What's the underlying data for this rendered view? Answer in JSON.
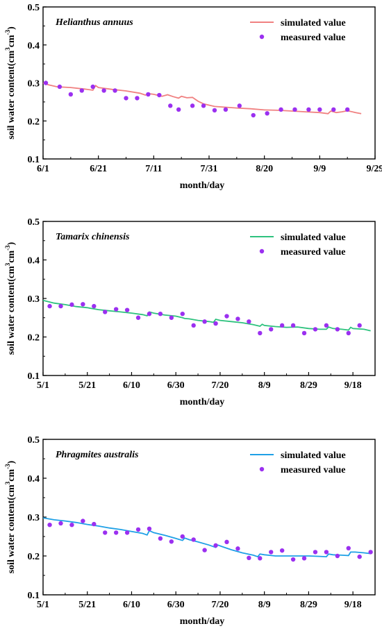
{
  "chart_data": [
    {
      "type": "line+scatter",
      "title": "Helianthus annuus",
      "xlabel": "month/day",
      "ylabel_main": "soil water content(cm",
      "ylabel_sup1": "3",
      "ylabel_mid": "cm",
      "ylabel_sup2": "-3",
      "ylabel_end": ")",
      "x_ticks": [
        "6/1",
        "6/21",
        "7/11",
        "7/31",
        "8/20",
        "9/9",
        "9/29"
      ],
      "x_ticks_day": [
        0,
        20,
        40,
        60,
        80,
        100,
        120
      ],
      "y_ticks": [
        "0.1",
        "0.2",
        "0.3",
        "0.4",
        "0.5"
      ],
      "ylim": [
        0.1,
        0.5
      ],
      "xlim_day": [
        0,
        120
      ],
      "legend": {
        "simulated": "simulated value",
        "measured": "measured value",
        "placement": "top-right"
      },
      "colors": {
        "line": "#f08080",
        "points": "#9b30f0"
      },
      "simulated": {
        "x": [
          0,
          2,
          5,
          10,
          15,
          18,
          19,
          20,
          25,
          30,
          35,
          37,
          38,
          40,
          43,
          45,
          47,
          49,
          50,
          52,
          54,
          56,
          58,
          62,
          66,
          70,
          75,
          80,
          85,
          90,
          95,
          100,
          103,
          104,
          106,
          108,
          110,
          113,
          115
        ],
        "y": [
          0.3,
          0.295,
          0.29,
          0.288,
          0.284,
          0.281,
          0.293,
          0.288,
          0.283,
          0.279,
          0.273,
          0.268,
          0.272,
          0.27,
          0.265,
          0.269,
          0.264,
          0.26,
          0.265,
          0.261,
          0.262,
          0.252,
          0.245,
          0.238,
          0.236,
          0.234,
          0.232,
          0.229,
          0.228,
          0.226,
          0.224,
          0.222,
          0.219,
          0.226,
          0.222,
          0.224,
          0.227,
          0.222,
          0.219
        ]
      },
      "measured": {
        "x": [
          1,
          6,
          10,
          14,
          18,
          22,
          26,
          30,
          34,
          38,
          42,
          46,
          49,
          54,
          58,
          62,
          66,
          71,
          76,
          81,
          86,
          91,
          96,
          100,
          105,
          110
        ],
        "y": [
          0.3,
          0.29,
          0.27,
          0.28,
          0.29,
          0.28,
          0.28,
          0.26,
          0.26,
          0.27,
          0.268,
          0.24,
          0.23,
          0.24,
          0.24,
          0.228,
          0.23,
          0.24,
          0.215,
          0.22,
          0.23,
          0.23,
          0.23,
          0.23,
          0.23,
          0.23
        ]
      }
    },
    {
      "type": "line+scatter",
      "title": "Tamarix chinensis",
      "xlabel": "month/day",
      "ylabel_main": "soil water content(cm",
      "ylabel_sup1": "3",
      "ylabel_mid": "cm",
      "ylabel_sup2": "-3",
      "ylabel_end": ")",
      "x_ticks": [
        "5/1",
        "5/21",
        "6/10",
        "6/30",
        "7/20",
        "8/9",
        "8/29",
        "9/18"
      ],
      "x_ticks_day": [
        0,
        20,
        40,
        60,
        80,
        100,
        120,
        140
      ],
      "y_ticks": [
        "0.1",
        "0.2",
        "0.3",
        "0.4",
        "0.5"
      ],
      "ylim": [
        0.1,
        0.5
      ],
      "xlim_day": [
        0,
        150
      ],
      "legend": {
        "simulated": "simulated value",
        "measured": "measured value",
        "placement": "top-right"
      },
      "colors": {
        "line": "#2ec27e",
        "points": "#9b30f0"
      },
      "simulated": {
        "x": [
          0,
          5,
          10,
          15,
          20,
          25,
          30,
          35,
          40,
          45,
          47,
          48,
          50,
          55,
          60,
          63,
          64,
          66,
          70,
          75,
          77,
          78,
          80,
          85,
          90,
          95,
          98,
          99,
          100,
          105,
          110,
          115,
          120,
          125,
          128,
          129,
          131,
          135,
          138,
          139,
          140,
          145,
          148
        ],
        "y": [
          0.295,
          0.288,
          0.284,
          0.279,
          0.276,
          0.271,
          0.268,
          0.265,
          0.262,
          0.258,
          0.255,
          0.265,
          0.262,
          0.257,
          0.254,
          0.25,
          0.248,
          0.247,
          0.243,
          0.24,
          0.238,
          0.246,
          0.243,
          0.24,
          0.237,
          0.232,
          0.228,
          0.233,
          0.23,
          0.227,
          0.225,
          0.226,
          0.222,
          0.22,
          0.22,
          0.226,
          0.222,
          0.22,
          0.218,
          0.225,
          0.222,
          0.22,
          0.216
        ]
      },
      "measured": {
        "x": [
          3,
          8,
          13,
          18,
          23,
          28,
          33,
          38,
          43,
          48,
          53,
          58,
          63,
          68,
          73,
          78,
          83,
          88,
          93,
          98,
          103,
          108,
          113,
          118,
          123,
          128,
          133,
          138,
          143
        ],
        "y": [
          0.28,
          0.28,
          0.284,
          0.285,
          0.28,
          0.265,
          0.272,
          0.27,
          0.25,
          0.26,
          0.26,
          0.25,
          0.26,
          0.23,
          0.24,
          0.235,
          0.254,
          0.247,
          0.24,
          0.21,
          0.22,
          0.23,
          0.23,
          0.21,
          0.22,
          0.23,
          0.22,
          0.21,
          0.23
        ]
      }
    },
    {
      "type": "line+scatter",
      "title": "Phragmites australis",
      "xlabel": "month/day",
      "ylabel_main": "soil water content(cm",
      "ylabel_sup1": "3",
      "ylabel_mid": "cm",
      "ylabel_sup2": "-3",
      "ylabel_end": ")",
      "x_ticks": [
        "5/1",
        "5/21",
        "6/10",
        "6/30",
        "7/20",
        "8/9",
        "8/29",
        "9/18"
      ],
      "x_ticks_day": [
        0,
        20,
        40,
        60,
        80,
        100,
        120,
        140
      ],
      "y_ticks": [
        "0.1",
        "0.2",
        "0.3",
        "0.4",
        "0.5"
      ],
      "ylim": [
        0.1,
        0.5
      ],
      "xlim_day": [
        0,
        150
      ],
      "legend": {
        "simulated": "simulated value",
        "measured": "measured value",
        "placement": "top-right"
      },
      "colors": {
        "line": "#1ea0e6",
        "points": "#9b30f0"
      },
      "simulated": {
        "x": [
          0,
          5,
          10,
          15,
          20,
          25,
          30,
          35,
          40,
          45,
          47,
          48,
          50,
          55,
          60,
          63,
          64,
          66,
          70,
          75,
          78,
          79,
          81,
          85,
          90,
          95,
          97,
          98,
          100,
          105,
          110,
          115,
          120,
          125,
          128,
          129,
          131,
          135,
          138,
          139,
          141,
          145,
          148
        ],
        "y": [
          0.298,
          0.293,
          0.29,
          0.286,
          0.281,
          0.277,
          0.272,
          0.268,
          0.263,
          0.258,
          0.254,
          0.265,
          0.26,
          0.253,
          0.245,
          0.24,
          0.246,
          0.242,
          0.236,
          0.228,
          0.222,
          0.228,
          0.224,
          0.216,
          0.208,
          0.202,
          0.198,
          0.205,
          0.203,
          0.2,
          0.2,
          0.2,
          0.2,
          0.199,
          0.198,
          0.205,
          0.203,
          0.202,
          0.201,
          0.21,
          0.21,
          0.208,
          0.206
        ]
      },
      "measured": {
        "x": [
          3,
          8,
          13,
          18,
          23,
          28,
          33,
          38,
          43,
          48,
          53,
          58,
          63,
          68,
          73,
          78,
          83,
          88,
          93,
          98,
          103,
          108,
          113,
          118,
          123,
          128,
          133,
          138,
          143,
          148
        ],
        "y": [
          0.28,
          0.284,
          0.28,
          0.29,
          0.282,
          0.26,
          0.26,
          0.26,
          0.268,
          0.27,
          0.245,
          0.237,
          0.25,
          0.242,
          0.215,
          0.227,
          0.236,
          0.219,
          0.195,
          0.194,
          0.21,
          0.214,
          0.191,
          0.194,
          0.21,
          0.21,
          0.2,
          0.22,
          0.198,
          0.21
        ]
      }
    }
  ]
}
